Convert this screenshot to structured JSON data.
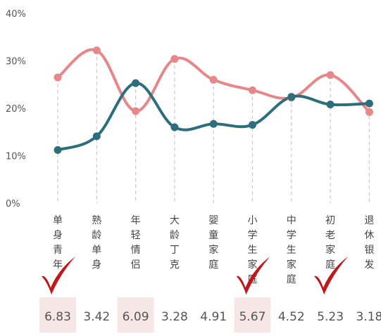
{
  "chart_data": {
    "type": "line",
    "y_ticks": [
      "0%",
      "10%",
      "20%",
      "30%",
      "40%"
    ],
    "ylim": [
      0,
      40
    ],
    "categories": [
      "单身青年",
      "熟龄单身",
      "年轻情侣",
      "大龄丁克",
      "婴童家庭",
      "小学生家庭",
      "中学生家庭",
      "初老家庭",
      "退休银发"
    ],
    "series": [
      {
        "color": "#E8878A",
        "values": [
          26.5,
          32.2,
          19.4,
          30.4,
          26.0,
          23.8,
          22.2,
          27.0,
          19.2
        ]
      },
      {
        "color": "#2C6E7C",
        "values": [
          11.2,
          14.1,
          25.3,
          16.0,
          16.7,
          16.5,
          22.4,
          20.8,
          21.0
        ]
      }
    ],
    "scores": [
      "6.83",
      "3.42",
      "6.09",
      "3.28",
      "4.91",
      "5.67",
      "4.52",
      "5.23",
      "3.18"
    ],
    "highlighted_scores": [
      0,
      2,
      5
    ],
    "checkmarks_at": [
      0,
      5,
      7
    ],
    "grid": false,
    "legend": "none"
  },
  "colors": {
    "dropline": "#c8c8c8",
    "highlight_bg": "#F7E6E6",
    "check": "#C0171C"
  }
}
